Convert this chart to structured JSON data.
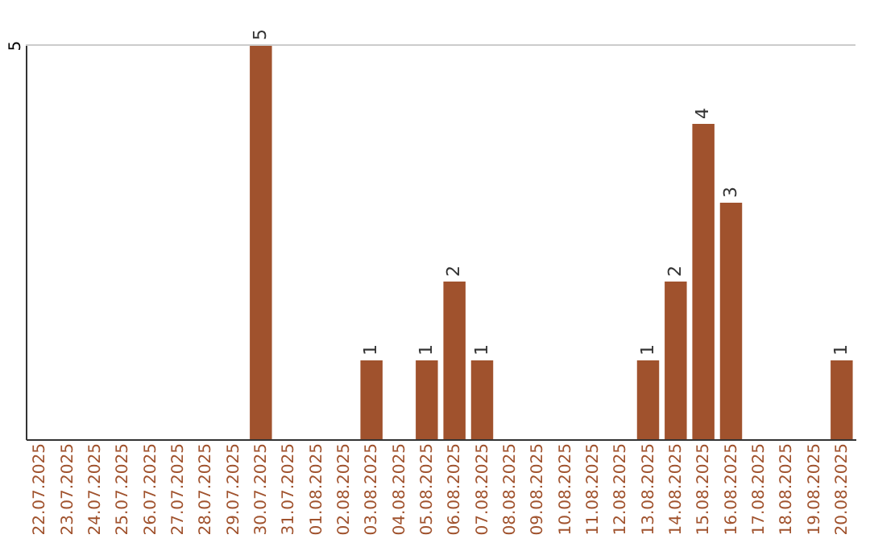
{
  "chart_data": {
    "type": "bar",
    "categories": [
      "22.07.2025",
      "23.07.2025",
      "24.07.2025",
      "25.07.2025",
      "26.07.2025",
      "27.07.2025",
      "28.07.2025",
      "29.07.2025",
      "30.07.2025",
      "31.07.2025",
      "01.08.2025",
      "02.08.2025",
      "03.08.2025",
      "04.08.2025",
      "05.08.2025",
      "06.08.2025",
      "07.08.2025",
      "08.08.2025",
      "09.08.2025",
      "10.08.2025",
      "11.08.2025",
      "12.08.2025",
      "13.08.2025",
      "14.08.2025",
      "15.08.2025",
      "16.08.2025",
      "17.08.2025",
      "18.08.2025",
      "19.08.2025",
      "20.08.2025"
    ],
    "values": [
      null,
      null,
      null,
      null,
      null,
      null,
      null,
      null,
      5,
      null,
      null,
      null,
      1,
      null,
      1,
      2,
      1,
      null,
      null,
      null,
      null,
      null,
      1,
      2,
      4,
      3,
      null,
      null,
      null,
      1
    ],
    "color": "#a0522d",
    "ylim": [
      0,
      5
    ],
    "yticks": [
      5
    ],
    "ref_lines": [
      {
        "axis": "y",
        "value": 5,
        "color": "#cccccc"
      }
    ],
    "data_labels": true
  }
}
